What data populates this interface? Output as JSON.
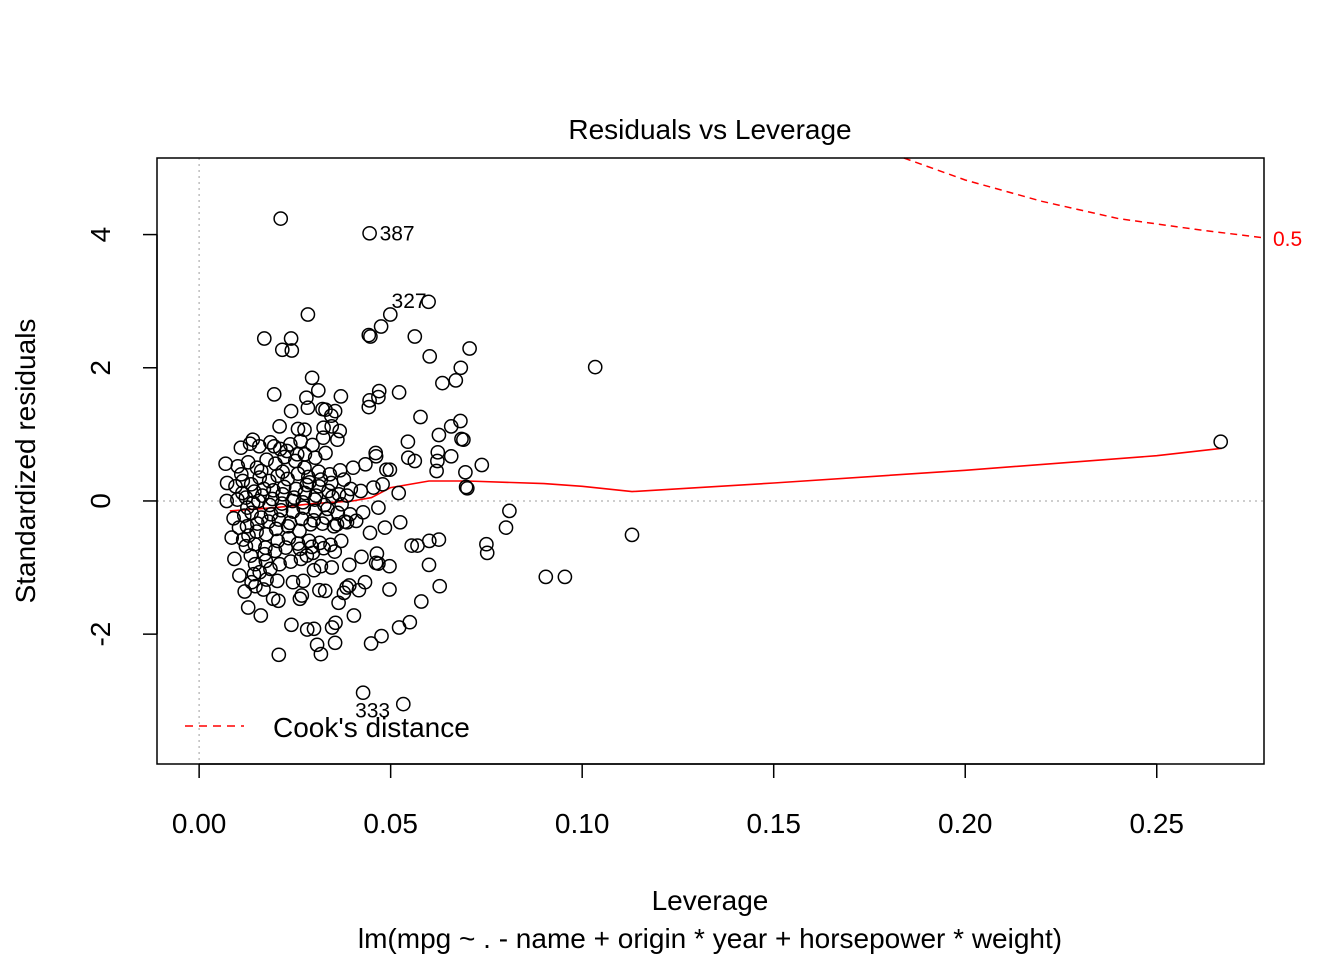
{
  "chart_data": {
    "type": "scatter",
    "title": "Residuals vs Leverage",
    "xlabel": "Leverage",
    "subtitle": "lm(mpg ~ . - name + origin * year + horsepower * weight)",
    "ylabel": "Standardized residuals",
    "xlim": [
      -0.011,
      0.278
    ],
    "ylim": [
      -3.95,
      5.15
    ],
    "xticks": [
      0.0,
      0.05,
      0.1,
      0.15,
      0.2,
      0.25
    ],
    "xtick_labels": [
      "0.00",
      "0.05",
      "0.10",
      "0.15",
      "0.20",
      "0.25"
    ],
    "yticks": [
      -2,
      0,
      2,
      4
    ],
    "ytick_labels": [
      "-2",
      "0",
      "2",
      "4"
    ],
    "reference_lines": {
      "h": 0,
      "v": 0
    },
    "legend": {
      "position": "bottom-left",
      "label": "Cook's distance"
    },
    "cooks_contour": {
      "label": "0.5",
      "color": "#ff0000",
      "points": [
        [
          0.184,
          5.15
        ],
        [
          0.2,
          4.82
        ],
        [
          0.22,
          4.5
        ],
        [
          0.24,
          4.24
        ],
        [
          0.26,
          4.08
        ],
        [
          0.278,
          3.95
        ]
      ]
    },
    "smooth_line": {
      "color": "#ff0000",
      "points": [
        [
          0.008,
          -0.15
        ],
        [
          0.02,
          -0.1
        ],
        [
          0.03,
          -0.04
        ],
        [
          0.04,
          0.0
        ],
        [
          0.045,
          0.05
        ],
        [
          0.05,
          0.2
        ],
        [
          0.06,
          0.3
        ],
        [
          0.07,
          0.3
        ],
        [
          0.09,
          0.26
        ],
        [
          0.1,
          0.22
        ],
        [
          0.113,
          0.14
        ],
        [
          0.15,
          0.27
        ],
        [
          0.2,
          0.46
        ],
        [
          0.25,
          0.68
        ],
        [
          0.267,
          0.79
        ]
      ]
    },
    "labeled_points": [
      {
        "label": "387",
        "x": 0.0445,
        "y": 4.02
      },
      {
        "label": "327",
        "x": 0.0599,
        "y": 2.99
      },
      {
        "label": "333",
        "x": 0.0428,
        "y": -2.88
      }
    ],
    "points": [
      [
        0.0213,
        4.24
      ],
      [
        0.0445,
        4.02
      ],
      [
        0.0599,
        2.99
      ],
      [
        0.0428,
        -2.88
      ],
      [
        0.0533,
        -3.05
      ],
      [
        0.0284,
        2.8
      ],
      [
        0.0499,
        2.8
      ],
      [
        0.0475,
        2.62
      ],
      [
        0.0443,
        2.49
      ],
      [
        0.0447,
        2.47
      ],
      [
        0.017,
        2.44
      ],
      [
        0.024,
        2.44
      ],
      [
        0.0217,
        2.27
      ],
      [
        0.0242,
        2.26
      ],
      [
        0.0563,
        2.47
      ],
      [
        0.0706,
        2.29
      ],
      [
        0.0602,
        2.17
      ],
      [
        0.0683,
        2.0
      ],
      [
        0.1034,
        2.01
      ],
      [
        0.067,
        1.81
      ],
      [
        0.0635,
        1.77
      ],
      [
        0.0295,
        1.85
      ],
      [
        0.0311,
        1.66
      ],
      [
        0.0196,
        1.6
      ],
      [
        0.047,
        1.65
      ],
      [
        0.0522,
        1.63
      ],
      [
        0.037,
        1.57
      ],
      [
        0.0468,
        1.56
      ],
      [
        0.0445,
        1.51
      ],
      [
        0.0443,
        1.41
      ],
      [
        0.028,
        1.55
      ],
      [
        0.0284,
        1.4
      ],
      [
        0.024,
        1.35
      ],
      [
        0.0322,
        1.38
      ],
      [
        0.033,
        1.37
      ],
      [
        0.0355,
        1.35
      ],
      [
        0.0345,
        1.28
      ],
      [
        0.0578,
        1.26
      ],
      [
        0.0682,
        1.2
      ],
      [
        0.0658,
        1.12
      ],
      [
        0.021,
        1.12
      ],
      [
        0.0258,
        1.08
      ],
      [
        0.0275,
        1.07
      ],
      [
        0.0325,
        1.1
      ],
      [
        0.0346,
        1.12
      ],
      [
        0.0367,
        1.05
      ],
      [
        0.0626,
        0.99
      ],
      [
        0.0545,
        0.89
      ],
      [
        0.0685,
        0.93
      ],
      [
        0.069,
        0.92
      ],
      [
        0.0623,
        0.73
      ],
      [
        0.0622,
        0.6
      ],
      [
        0.0658,
        0.67
      ],
      [
        0.0461,
        0.72
      ],
      [
        0.0462,
        0.67
      ],
      [
        0.0489,
        0.47
      ],
      [
        0.0498,
        0.47
      ],
      [
        0.0546,
        0.65
      ],
      [
        0.0563,
        0.6
      ],
      [
        0.062,
        0.45
      ],
      [
        0.0695,
        0.43
      ],
      [
        0.0738,
        0.54
      ],
      [
        0.0697,
        0.21
      ],
      [
        0.07,
        0.19
      ],
      [
        0.0521,
        0.12
      ],
      [
        0.081,
        -0.15
      ],
      [
        0.0801,
        -0.4
      ],
      [
        0.075,
        -0.65
      ],
      [
        0.0752,
        -0.78
      ],
      [
        0.057,
        -0.67
      ],
      [
        0.0555,
        -0.67
      ],
      [
        0.0601,
        -0.6
      ],
      [
        0.0626,
        -0.58
      ],
      [
        0.0525,
        -0.32
      ],
      [
        0.0485,
        -0.4
      ],
      [
        0.0446,
        -0.48
      ],
      [
        0.0905,
        -1.14
      ],
      [
        0.0955,
        -1.14
      ],
      [
        0.113,
        -0.51
      ],
      [
        0.2667,
        0.89
      ],
      [
        0.0628,
        -1.28
      ],
      [
        0.058,
        -1.51
      ],
      [
        0.06,
        -0.96
      ],
      [
        0.0497,
        -0.98
      ],
      [
        0.0468,
        -0.94
      ],
      [
        0.0462,
        -0.93
      ],
      [
        0.0464,
        -0.79
      ],
      [
        0.0424,
        -0.84
      ],
      [
        0.0433,
        -1.22
      ],
      [
        0.0417,
        -1.34
      ],
      [
        0.0497,
        -1.33
      ],
      [
        0.0385,
        -1.3
      ],
      [
        0.0364,
        -1.53
      ],
      [
        0.0404,
        -1.72
      ],
      [
        0.055,
        -1.82
      ],
      [
        0.0522,
        -1.9
      ],
      [
        0.0476,
        -2.03
      ],
      [
        0.0449,
        -2.14
      ],
      [
        0.0355,
        -2.13
      ],
      [
        0.0308,
        -2.16
      ],
      [
        0.0318,
        -2.3
      ],
      [
        0.0208,
        -2.31
      ],
      [
        0.0282,
        -1.93
      ],
      [
        0.03,
        -1.92
      ],
      [
        0.0347,
        -1.9
      ],
      [
        0.0356,
        -1.83
      ],
      [
        0.0241,
        -1.86
      ],
      [
        0.0161,
        -1.72
      ],
      [
        0.0128,
        -1.6
      ],
      [
        0.0119,
        -1.36
      ],
      [
        0.0147,
        -1.28
      ],
      [
        0.0168,
        -1.33
      ],
      [
        0.0193,
        -1.47
      ],
      [
        0.0207,
        -1.5
      ],
      [
        0.0263,
        -1.47
      ],
      [
        0.0268,
        -1.42
      ],
      [
        0.0314,
        -1.34
      ],
      [
        0.0329,
        -1.35
      ],
      [
        0.0378,
        -1.38
      ],
      [
        0.0392,
        -1.27
      ],
      [
        0.0245,
        -1.22
      ],
      [
        0.0272,
        -1.2
      ],
      [
        0.03,
        -1.04
      ],
      [
        0.0318,
        -0.98
      ],
      [
        0.0346,
        -1.0
      ],
      [
        0.0392,
        -0.96
      ],
      [
        0.0105,
        -1.12
      ],
      [
        0.0143,
        -1.1
      ],
      [
        0.0158,
        -1.07
      ],
      [
        0.0186,
        -1.02
      ],
      [
        0.021,
        -0.95
      ],
      [
        0.0239,
        -0.91
      ],
      [
        0.0266,
        -0.87
      ],
      [
        0.0281,
        -0.82
      ],
      [
        0.0297,
        -0.78
      ],
      [
        0.0092,
        -0.87
      ],
      [
        0.0135,
        -0.82
      ],
      [
        0.0171,
        -0.8
      ],
      [
        0.0198,
        -0.75
      ],
      [
        0.0226,
        -0.7
      ],
      [
        0.0258,
        -0.64
      ],
      [
        0.0287,
        -0.6
      ],
      [
        0.0315,
        -0.63
      ],
      [
        0.0343,
        -0.66
      ],
      [
        0.0371,
        -0.6
      ],
      [
        0.0085,
        -0.55
      ],
      [
        0.0115,
        -0.58
      ],
      [
        0.0129,
        -0.52
      ],
      [
        0.015,
        -0.46
      ],
      [
        0.0175,
        -0.5
      ],
      [
        0.0201,
        -0.42
      ],
      [
        0.0232,
        -0.38
      ],
      [
        0.0262,
        -0.45
      ],
      [
        0.0291,
        -0.35
      ],
      [
        0.0322,
        -0.34
      ],
      [
        0.0352,
        -0.38
      ],
      [
        0.038,
        -0.31
      ],
      [
        0.041,
        -0.3
      ],
      [
        0.009,
        -0.26
      ],
      [
        0.0118,
        -0.22
      ],
      [
        0.0137,
        -0.18
      ],
      [
        0.0162,
        -0.25
      ],
      [
        0.0188,
        -0.2
      ],
      [
        0.0214,
        -0.14
      ],
      [
        0.0245,
        -0.16
      ],
      [
        0.0273,
        -0.1
      ],
      [
        0.0303,
        -0.15
      ],
      [
        0.0335,
        -0.12
      ],
      [
        0.0362,
        -0.18
      ],
      [
        0.0394,
        -0.2
      ],
      [
        0.0428,
        -0.17
      ],
      [
        0.0468,
        -0.1
      ],
      [
        0.0072,
        0.0
      ],
      [
        0.01,
        0.02
      ],
      [
        0.0122,
        0.05
      ],
      [
        0.0141,
        -0.03
      ],
      [
        0.0165,
        0.08
      ],
      [
        0.0191,
        0.03
      ],
      [
        0.0218,
        0.1
      ],
      [
        0.0248,
        0.05
      ],
      [
        0.0276,
        0.12
      ],
      [
        0.0305,
        0.08
      ],
      [
        0.0338,
        0.15
      ],
      [
        0.0365,
        0.1
      ],
      [
        0.0396,
        0.18
      ],
      [
        0.0422,
        0.15
      ],
      [
        0.0455,
        0.2
      ],
      [
        0.0479,
        0.25
      ],
      [
        0.0073,
        0.27
      ],
      [
        0.0095,
        0.22
      ],
      [
        0.0114,
        0.3
      ],
      [
        0.0136,
        0.25
      ],
      [
        0.0158,
        0.35
      ],
      [
        0.0183,
        0.3
      ],
      [
        0.0205,
        0.38
      ],
      [
        0.0231,
        0.33
      ],
      [
        0.0258,
        0.41
      ],
      [
        0.0285,
        0.36
      ],
      [
        0.0312,
        0.44
      ],
      [
        0.0341,
        0.4
      ],
      [
        0.0368,
        0.46
      ],
      [
        0.0402,
        0.5
      ],
      [
        0.0434,
        0.55
      ],
      [
        0.0069,
        0.56
      ],
      [
        0.0101,
        0.52
      ],
      [
        0.0128,
        0.58
      ],
      [
        0.0151,
        0.5
      ],
      [
        0.0176,
        0.62
      ],
      [
        0.0199,
        0.56
      ],
      [
        0.0223,
        0.66
      ],
      [
        0.0251,
        0.6
      ],
      [
        0.0276,
        0.7
      ],
      [
        0.0303,
        0.65
      ],
      [
        0.033,
        0.72
      ],
      [
        0.0109,
        0.8
      ],
      [
        0.0133,
        0.86
      ],
      [
        0.0157,
        0.82
      ],
      [
        0.0186,
        0.88
      ],
      [
        0.0212,
        0.78
      ],
      [
        0.0238,
        0.85
      ],
      [
        0.0265,
        0.9
      ],
      [
        0.0296,
        0.84
      ],
      [
        0.0324,
        0.95
      ],
      [
        0.0361,
        0.92
      ],
      [
        0.014,
        0.92
      ],
      [
        0.0196,
        0.82
      ],
      [
        0.0229,
        0.75
      ],
      [
        0.0256,
        0.7
      ],
      [
        0.0113,
        0.12
      ],
      [
        0.0144,
        0.14
      ],
      [
        0.0169,
        0.18
      ],
      [
        0.0194,
        0.16
      ],
      [
        0.0222,
        0.21
      ],
      [
        0.0253,
        0.18
      ],
      [
        0.0281,
        0.24
      ],
      [
        0.0313,
        0.22
      ],
      [
        0.0345,
        0.27
      ],
      [
        0.0378,
        0.32
      ],
      [
        0.0125,
        -0.38
      ],
      [
        0.0152,
        -0.34
      ],
      [
        0.0181,
        -0.31
      ],
      [
        0.0208,
        -0.28
      ],
      [
        0.0237,
        -0.33
      ],
      [
        0.0268,
        -0.27
      ],
      [
        0.0299,
        -0.29
      ],
      [
        0.0331,
        -0.25
      ],
      [
        0.036,
        -0.35
      ],
      [
        0.0386,
        -0.32
      ],
      [
        0.0122,
        -0.68
      ],
      [
        0.0145,
        -0.65
      ],
      [
        0.0173,
        -0.7
      ],
      [
        0.0205,
        -0.6
      ],
      [
        0.0234,
        -0.56
      ],
      [
        0.0263,
        -0.72
      ],
      [
        0.0294,
        -0.69
      ],
      [
        0.0325,
        -0.71
      ],
      [
        0.0354,
        -0.76
      ],
      [
        0.0137,
        -1.22
      ],
      [
        0.0176,
        -1.18
      ],
      [
        0.0204,
        -1.2
      ],
      [
        0.0146,
        -0.95
      ],
      [
        0.0174,
        -0.9
      ],
      [
        0.011,
        0.4
      ],
      [
        0.0162,
        0.45
      ],
      [
        0.0218,
        0.44
      ],
      [
        0.0275,
        0.5
      ],
      [
        0.0288,
        0.28
      ],
      [
        0.0318,
        0.32
      ],
      [
        0.0348,
        0.06
      ],
      [
        0.0372,
        -0.05
      ],
      [
        0.0104,
        -0.4
      ],
      [
        0.0126,
        -0.1
      ],
      [
        0.0155,
        0.0
      ],
      [
        0.0184,
        -0.06
      ],
      [
        0.0216,
        -0.04
      ],
      [
        0.0244,
        0.0
      ],
      [
        0.0271,
        -0.02
      ],
      [
        0.0302,
        0.02
      ],
      [
        0.0327,
        -0.06
      ],
      [
        0.0386,
        0.08
      ]
    ]
  }
}
